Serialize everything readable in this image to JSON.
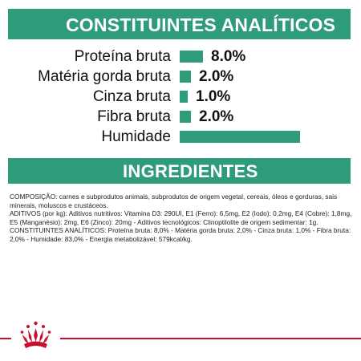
{
  "analytic": {
    "title": "CONSTITUINTES ANALÍTICOS",
    "rows": [
      {
        "label": "Proteína bruta",
        "value": "8.0%",
        "percent": 8.0
      },
      {
        "label": "Matéria gorda bruta",
        "value": "2.0%",
        "percent": 2.0
      },
      {
        "label": "Cinza bruta",
        "value": "1.0%",
        "percent": 1.0
      },
      {
        "label": "Fibra bruta",
        "value": "2.0%",
        "percent": 2.0
      },
      {
        "label": "Humidade",
        "value": "",
        "percent": 83.0
      }
    ],
    "bar_color": "#2e9b7b"
  },
  "ingredients": {
    "title": "INGREDIENTES",
    "lines": [
      "COMPOSIÇÃO: carnes e subprodutos animais, subprodutos de origem vegetal, cereais, óleos e gorduras, sais minerais, moluscos e crustáceos.",
      "ADITIVOS (por kg): Aditivos nutritivos: Vitamina D3: 290UI, E1 (Ferro): 6,5mg, E2 (Iodo): 0,2mg, E4 (Cobre): 1,8mg, E5 (Manganésio): 2mg, E6 (Zinco): 20mg - Aditivos tecnológicos: Clinoptilolite de origem sedimentar: 1g.",
      "CONSTITUINTES ANALÍTICOS: Proteína bruta: 8,0% - Matéria gorda bruta: 2,0% - Cinza bruta: 1,0% - Fibra bruta: 2,0% - Humidade: 83,0% - Energia metabolizável: 579kcal/kg."
    ]
  },
  "brand": {
    "logo_icon": "royal-canin-crown-logo",
    "accent": "#c8102e",
    "primary": "#2e9b7b"
  }
}
